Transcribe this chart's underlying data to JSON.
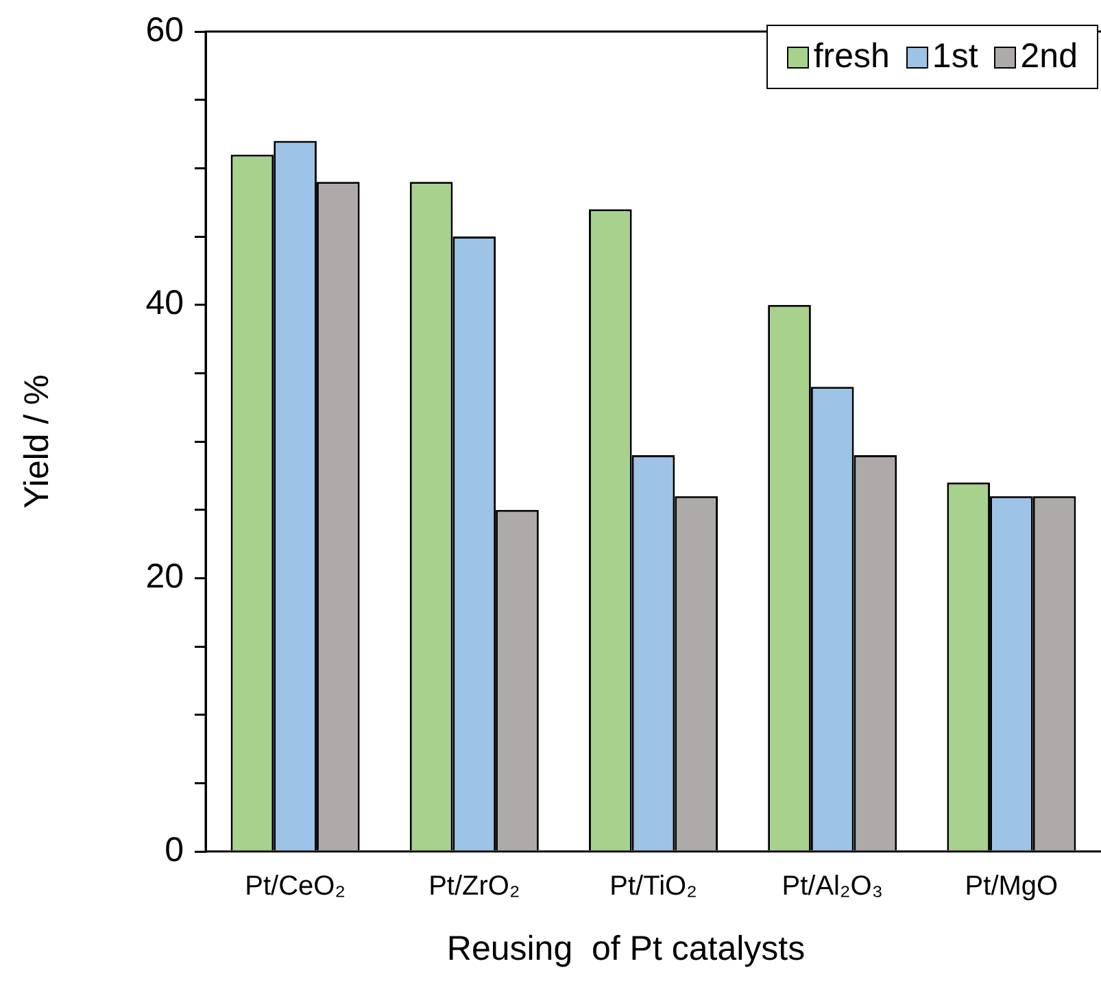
{
  "chart_data": {
    "type": "bar",
    "xlabel": "Reusing  of Pt catalysts",
    "ylabel": "Yield / %",
    "categories": [
      "Pt/CeO₂",
      "Pt/ZrO₂",
      "Pt/TiO₂",
      "Pt/Al₂O₃",
      "Pt/MgO"
    ],
    "series": [
      {
        "name": "fresh",
        "color": "#a9d18e",
        "values": [
          51,
          49,
          47,
          40,
          27
        ]
      },
      {
        "name": "1st",
        "color": "#9dc3e6",
        "values": [
          52,
          45,
          29,
          34,
          26
        ]
      },
      {
        "name": "2nd",
        "color": "#aeaaaa",
        "values": [
          49,
          25,
          26,
          29,
          26
        ]
      }
    ],
    "ylim": [
      0,
      60
    ],
    "yticks": [
      0,
      {
        "value": 5,
        "label": null
      },
      {
        "value": 10,
        "label": null
      },
      {
        "value": 15,
        "label": null
      },
      20,
      {
        "value": 25,
        "label": null
      },
      {
        "value": 30,
        "label": null
      },
      {
        "value": 35,
        "label": null
      },
      40,
      {
        "value": 45,
        "label": null
      },
      {
        "value": 50,
        "label": null
      },
      {
        "value": 55,
        "label": null
      },
      60
    ],
    "grid": false,
    "legend": "top right"
  }
}
